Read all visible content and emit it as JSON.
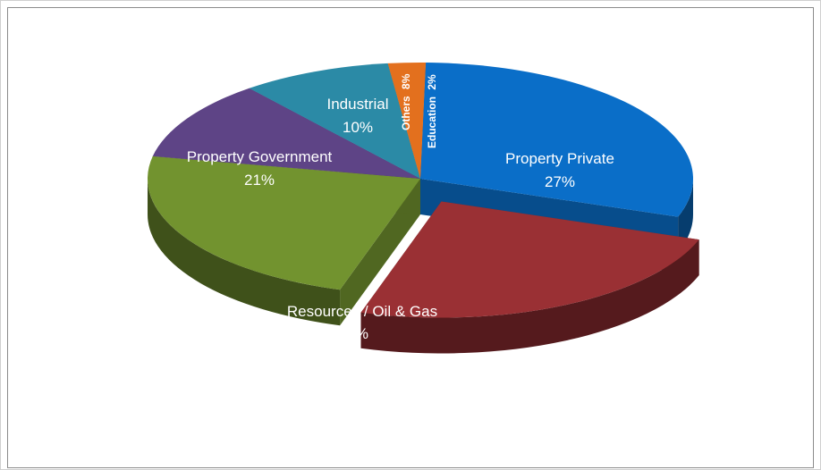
{
  "chart_data": {
    "type": "pie",
    "title": "",
    "slices": [
      {
        "label": "Property Private",
        "value": 27,
        "display": "27%",
        "color": "#0a6ec8",
        "exploded": false
      },
      {
        "label": "Resources / Oil & Gas",
        "value": 22,
        "display": "22%",
        "color": "#9a3034",
        "exploded": true
      },
      {
        "label": "Property Government",
        "value": 21,
        "display": "21%",
        "color": "#72932f",
        "exploded": false
      },
      {
        "label": "Industrial",
        "value": 10,
        "display": "10%",
        "color": "#5e4486",
        "exploded": false
      },
      {
        "label": "Others",
        "value": 8,
        "display": "8%",
        "color": "#2b8aa6",
        "exploded": false
      },
      {
        "label": "Education",
        "value": 2,
        "display": "2%",
        "color": "#e3701e",
        "exploded": false
      }
    ],
    "style": "3d-pie",
    "legend": "none"
  }
}
